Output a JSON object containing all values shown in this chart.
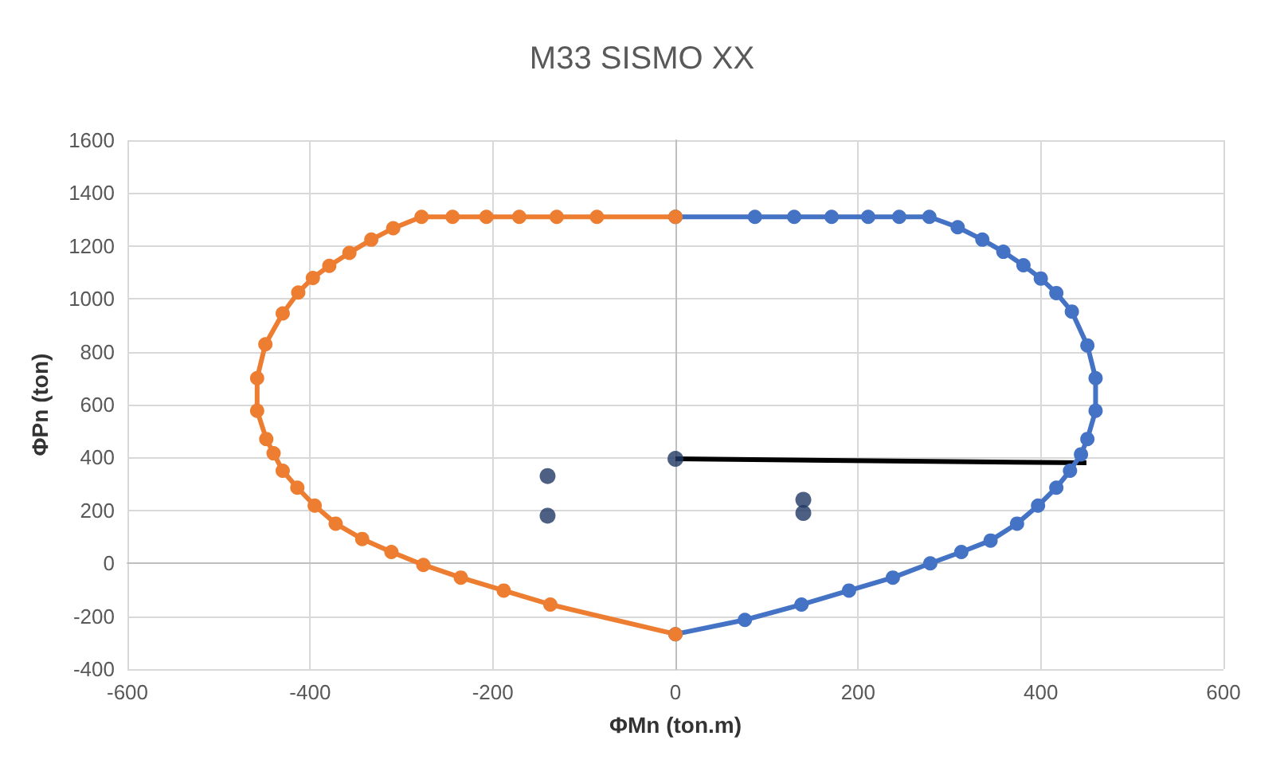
{
  "chart_data": {
    "type": "line",
    "title": "M33 SISMO XX",
    "xlabel": "ΦMn (ton.m)",
    "ylabel": "ΦPn (ton)",
    "xlim": [
      -600,
      600
    ],
    "xticks": [
      -600,
      -400,
      -200,
      0,
      200,
      400,
      600
    ],
    "ylim": [
      -400,
      1600
    ],
    "yticks": [
      -400,
      -200,
      0,
      200,
      400,
      600,
      800,
      1000,
      1200,
      1400,
      1600
    ],
    "grid": true,
    "series": [
      {
        "color": "#4472c4",
        "marker": "circle",
        "x": [
          0,
          87,
          130,
          171,
          211,
          245,
          278,
          309,
          336,
          359,
          381,
          400,
          417,
          434,
          451,
          460,
          460,
          451,
          444,
          432,
          417,
          397,
          374,
          345,
          313,
          279,
          238,
          190,
          138,
          76,
          0
        ],
        "values": [
          1310,
          1310,
          1310,
          1310,
          1310,
          1310,
          1310,
          1271,
          1224,
          1178,
          1127,
          1077,
          1022,
          952,
          824,
          700,
          577,
          470,
          412,
          350,
          286,
          218,
          150,
          86,
          43,
          0,
          -54,
          -103,
          -156,
          -214,
          -268
        ]
      },
      {
        "color": "#ed7d31",
        "marker": "circle",
        "x": [
          0,
          -86,
          -130,
          -171,
          -207,
          -244,
          -278,
          -309,
          -333,
          -357,
          -379,
          -397,
          -413,
          -430,
          -449,
          -458,
          -458,
          -448,
          -440,
          -430,
          -414,
          -395,
          -372,
          -343,
          -311,
          -276,
          -235,
          -188,
          -137,
          0
        ],
        "values": [
          1310,
          1310,
          1310,
          1310,
          1310,
          1310,
          1310,
          1267,
          1224,
          1174,
          1125,
          1079,
          1024,
          945,
          828,
          700,
          577,
          470,
          416,
          350,
          286,
          218,
          150,
          92,
          43,
          -6,
          -54,
          -103,
          -156,
          -268
        ]
      },
      {
        "type": "scatter",
        "color": "#203864",
        "marker": "circle",
        "x": [
          -140,
          -140,
          140,
          140,
          0
        ],
        "values": [
          330,
          180,
          240,
          190,
          395
        ]
      },
      {
        "color": "#000000",
        "marker": "none",
        "x": [
          0,
          450
        ],
        "values": [
          395,
          380
        ]
      }
    ]
  }
}
